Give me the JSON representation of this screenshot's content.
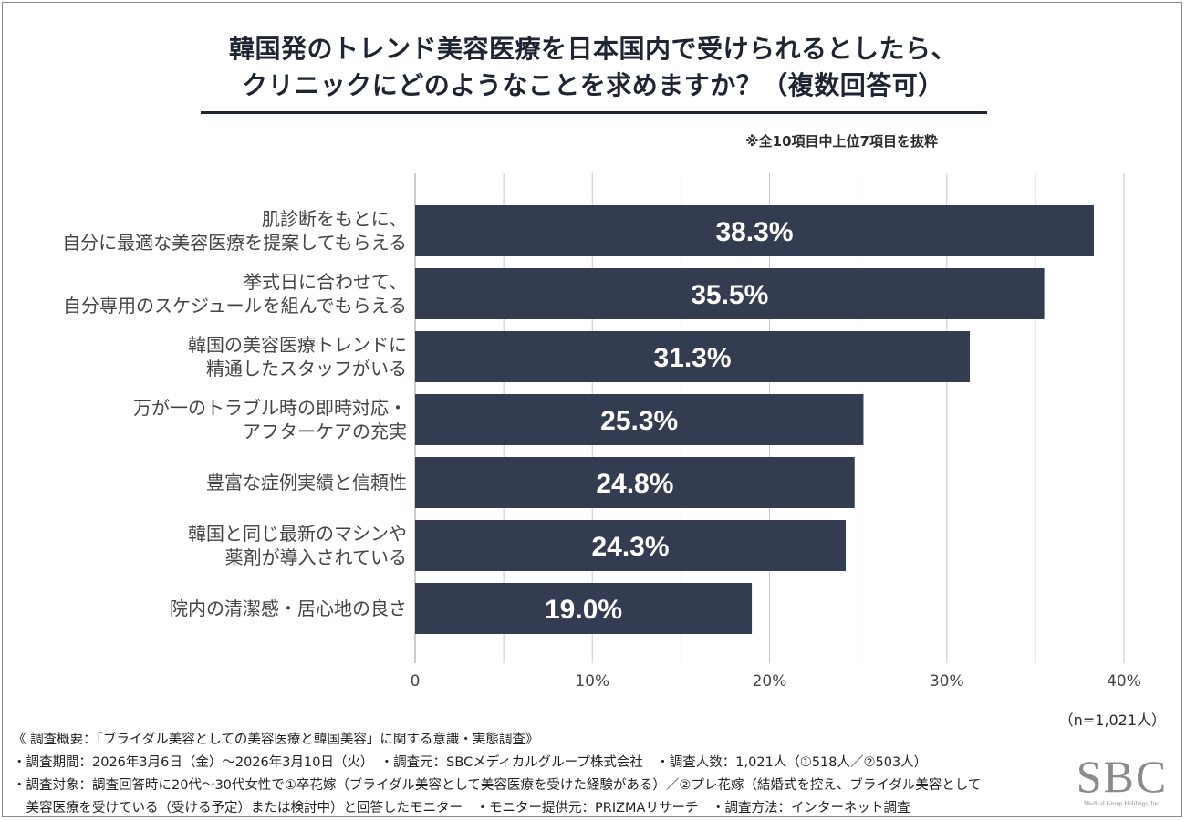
{
  "title": {
    "line1": "韓国発のトレンド美容医療を日本国内で受けられるとしたら、",
    "line2": "クリニックにどのようなことを求めますか？（複数回答可）"
  },
  "subnote": "※全10項目中上位7項目を抜粋",
  "colors": {
    "bar": "#343c52",
    "bar_label": "#ffffff",
    "grid": "#c8c8c8",
    "title": "#1f2433"
  },
  "chart_data": {
    "type": "bar",
    "orientation": "horizontal",
    "categories": [
      "肌診断をもとに、\n自分に最適な美容医療を提案してもらえる",
      "挙式日に合わせて、\n自分専用のスケジュールを組んでもらえる",
      "韓国の美容医療トレンドに\n精通したスタッフがいる",
      "万が一のトラブル時の即時対応・\nアフターケアの充実",
      "豊富な症例実績と信頼性",
      "韓国と同じ最新のマシンや\n薬剤が導入されている",
      "院内の清潔感・居心地の良さ"
    ],
    "values": [
      38.3,
      35.5,
      31.3,
      25.3,
      24.8,
      24.3,
      19.0
    ],
    "value_labels": [
      "38.3%",
      "35.5%",
      "31.3%",
      "25.3%",
      "24.8%",
      "24.3%",
      "19.0%"
    ],
    "xlim": [
      0,
      40
    ],
    "x_ticks": [
      0,
      10,
      20,
      30,
      40
    ],
    "x_tick_labels": [
      "0",
      "10%",
      "20%",
      "30%",
      "40%"
    ],
    "grid_step": 5,
    "grid": true,
    "n_label": "（n=1,021人）"
  },
  "notes": [
    "《 調査概要：「ブライダル美容としての美容医療と韓国美容」に関する意識・実態調査》",
    "・調査期間：2026年3月6日（金）～2026年3月10日（火）　・調査元：SBCメディカルグループ株式会社　・調査人数：1,021人（①518人／②503人）",
    "・調査対象：調査回答時に20代～30代女性で①卒花嫁（ブライダル美容として美容医療を受けた経験がある）／②プレ花嫁（結婚式を控え、ブライダル美容として",
    "　美容医療を受けている（受ける予定）または検討中）と回答したモニター　・モニター提供元：PRIZMAリサーチ　・調査方法：インターネット調査"
  ],
  "logo": {
    "mark": "SBC",
    "sub": "Medical Group Holdings, Inc."
  }
}
